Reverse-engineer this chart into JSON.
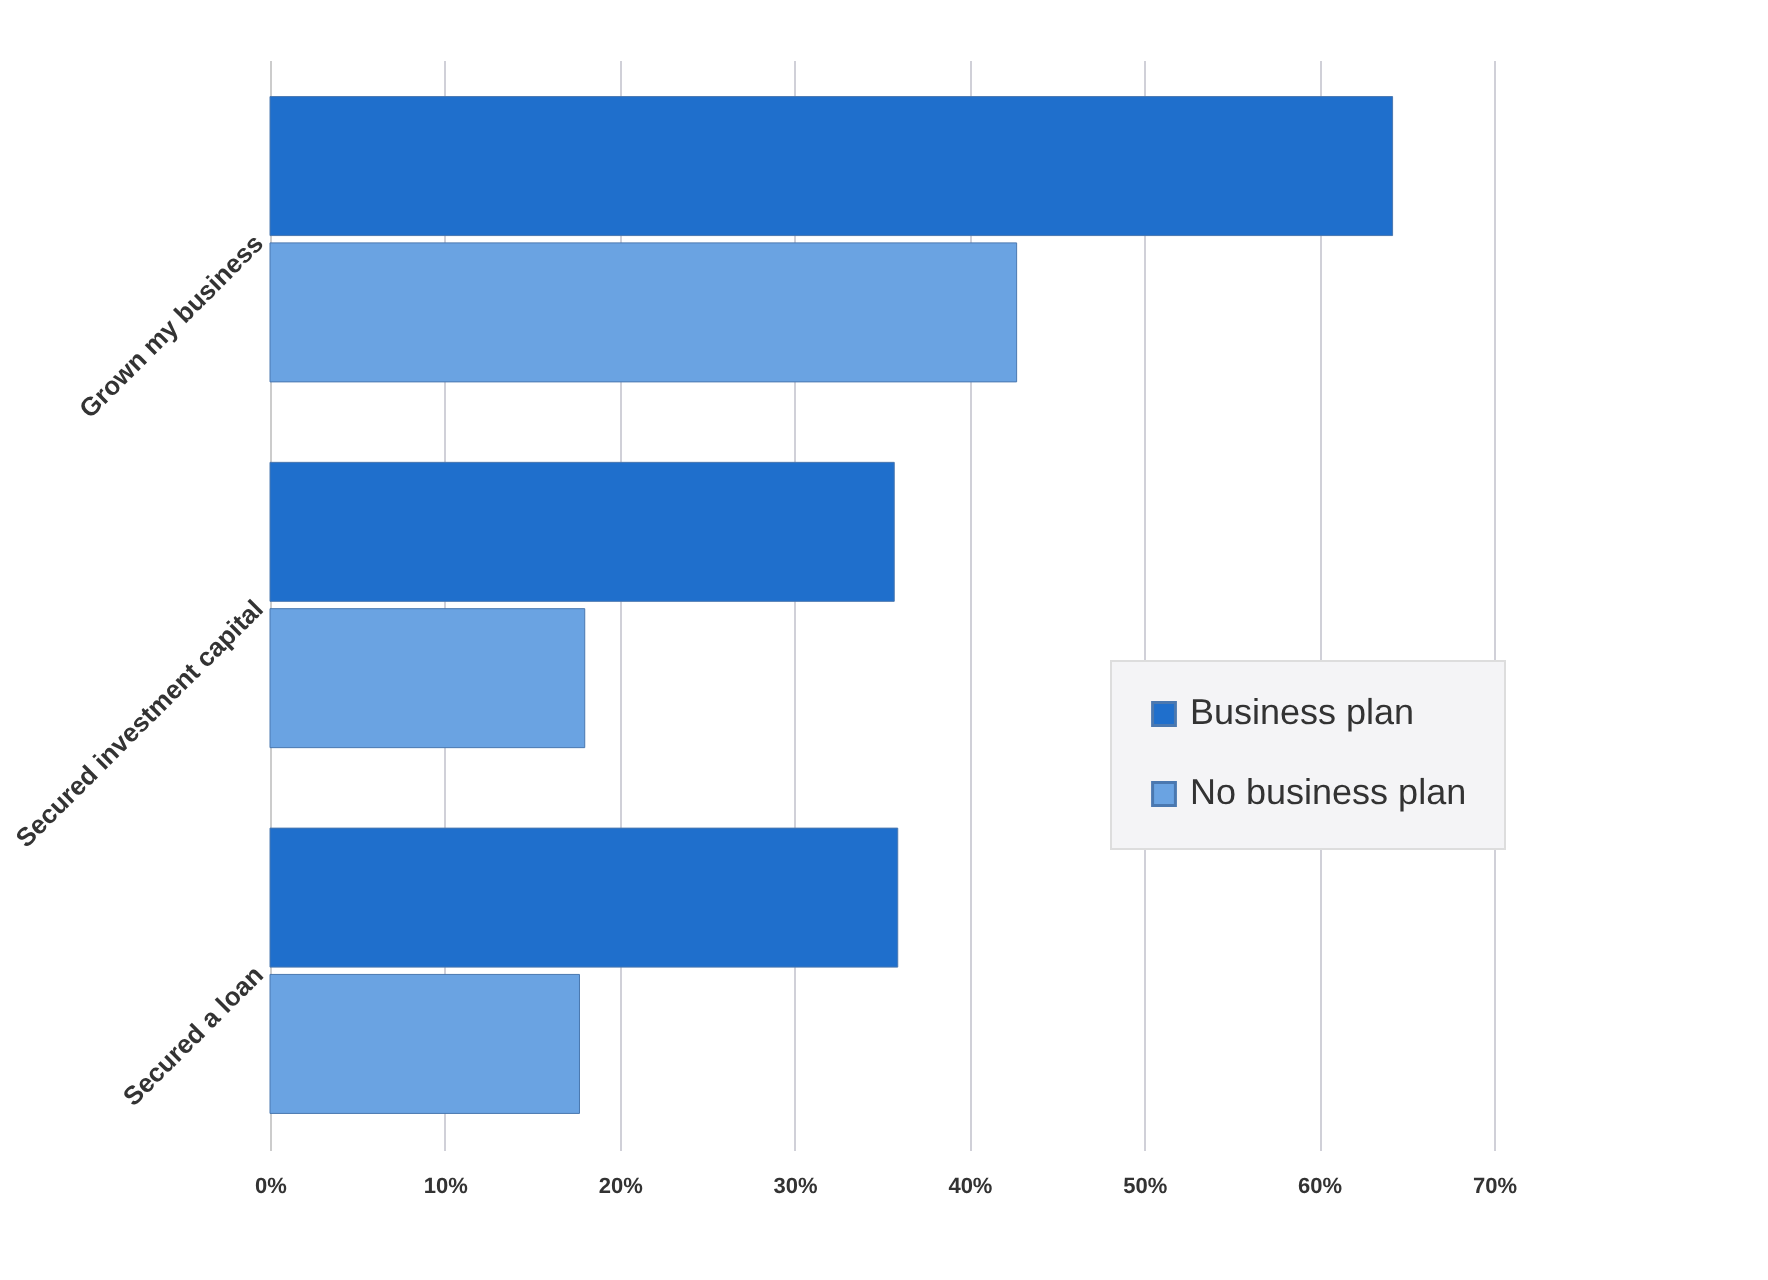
{
  "chart_data": {
    "type": "bar",
    "orientation": "horizontal",
    "categories": [
      "Grown my business",
      "Secured investment capital",
      "Secured a loan"
    ],
    "series": [
      {
        "name": "Business plan",
        "color": "#1f6fcc",
        "values": [
          64.2,
          35.7,
          35.9
        ]
      },
      {
        "name": "No business plan",
        "color": "#6aa3e2",
        "values": [
          42.7,
          18.0,
          17.7
        ]
      }
    ],
    "xlim": [
      0,
      70
    ],
    "xticks": [
      {
        "value": 0,
        "label": "0%"
      },
      {
        "value": 10,
        "label": "10%"
      },
      {
        "value": 20,
        "label": "20%"
      },
      {
        "value": 30,
        "label": "30%"
      },
      {
        "value": 40,
        "label": "40%"
      },
      {
        "value": 50,
        "label": "50%"
      },
      {
        "value": 60,
        "label": "60%"
      },
      {
        "value": 70,
        "label": "70%"
      }
    ],
    "grid": "x",
    "legend": "right"
  }
}
